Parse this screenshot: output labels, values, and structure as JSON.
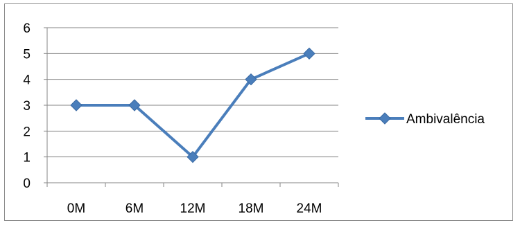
{
  "chart_data": {
    "type": "line",
    "title": "",
    "xlabel": "",
    "ylabel": "",
    "categories": [
      "0M",
      "6M",
      "12M",
      "18M",
      "24M"
    ],
    "ylim": [
      0,
      6
    ],
    "yticks": [
      "0",
      "1",
      "2",
      "3",
      "4",
      "5",
      "6"
    ],
    "grid": "horizontal",
    "legend_position": "right",
    "series": [
      {
        "name": "Ambivalência",
        "values": [
          3,
          3,
          1,
          4,
          5
        ],
        "color": "#4a7ebb",
        "marker": "diamond"
      }
    ]
  }
}
